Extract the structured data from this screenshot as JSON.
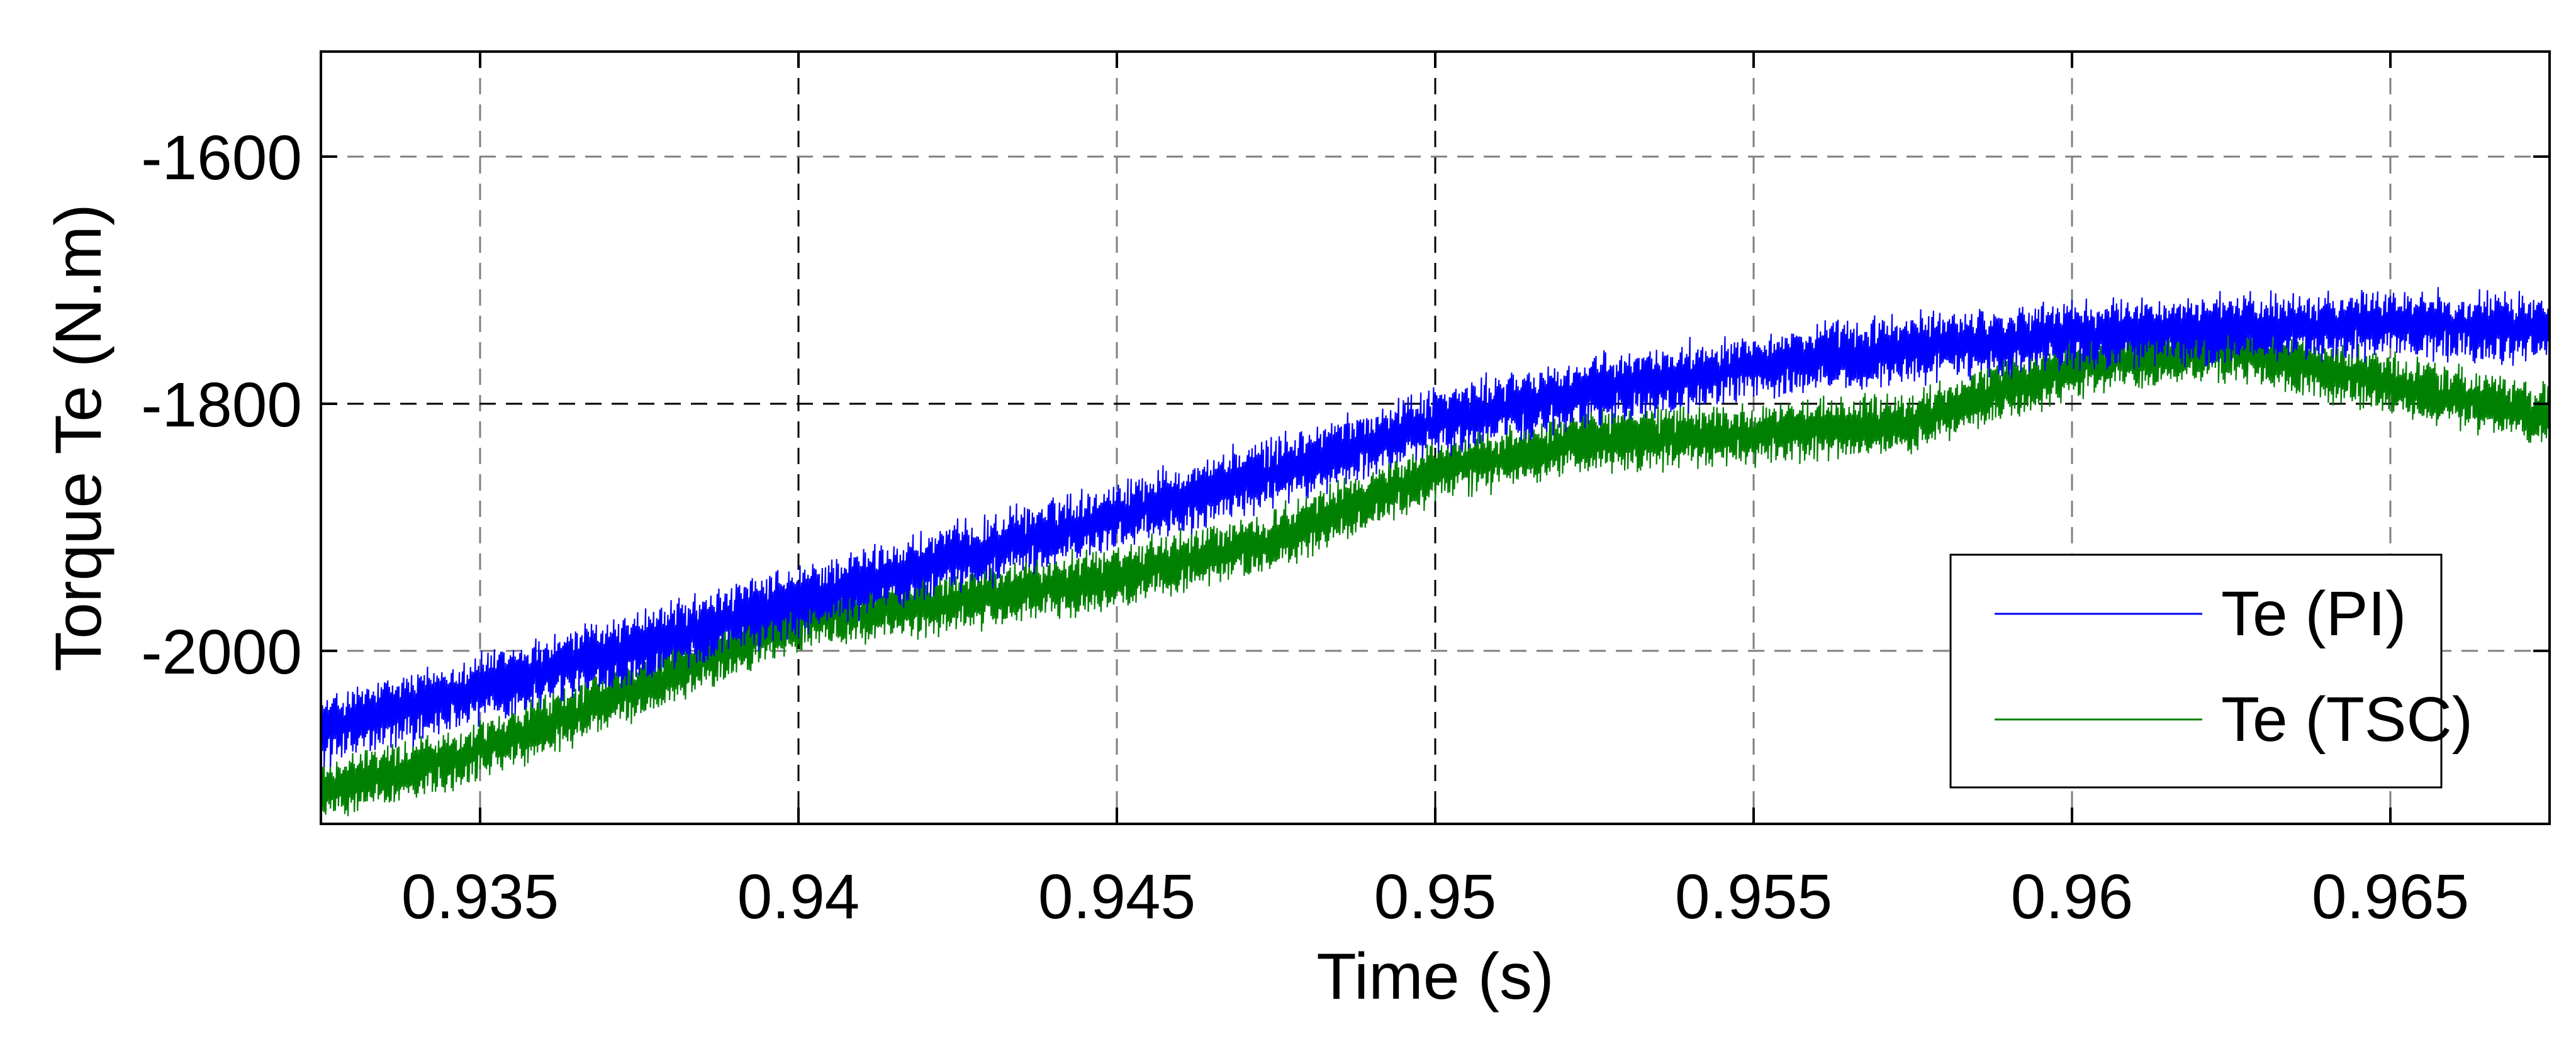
{
  "chart_data": {
    "type": "line",
    "xlabel": "Time (s)",
    "ylabel": "Torque Te (N.m)",
    "xlim": [
      0.9325,
      0.9675
    ],
    "ylim": [
      -2140,
      -1515
    ],
    "x_ticks": [
      0.935,
      0.94,
      0.945,
      0.95,
      0.955,
      0.96,
      0.965
    ],
    "x_tick_labels": [
      "0.935",
      "0.94",
      "0.945",
      "0.95",
      "0.955",
      "0.96",
      "0.965"
    ],
    "y_ticks": [
      -1600,
      -1800,
      -2000
    ],
    "y_tick_labels": [
      "-1600",
      "-1800",
      "-2000"
    ],
    "grid": true,
    "legend_position": "bottom-right",
    "ripple_note_free": true,
    "series": [
      {
        "name": "Te (PI)",
        "color": "#0000ff",
        "ripple": 45,
        "x": [
          0.9325,
          0.935,
          0.9375,
          0.94,
          0.9425,
          0.945,
          0.9475,
          0.95,
          0.9525,
          0.955,
          0.9575,
          0.96,
          0.9625,
          0.965,
          0.9675
        ],
        "y": [
          -2065,
          -2030,
          -1995,
          -1960,
          -1925,
          -1890,
          -1855,
          -1815,
          -1790,
          -1770,
          -1755,
          -1745,
          -1740,
          -1735,
          -1740
        ]
      },
      {
        "name": "Te (TSC)",
        "color": "#008000",
        "ripple": 40,
        "x": [
          0.9325,
          0.935,
          0.9375,
          0.94,
          0.9425,
          0.945,
          0.9475,
          0.95,
          0.9525,
          0.955,
          0.9575,
          0.96,
          0.9625,
          0.965,
          0.9675
        ],
        "y": [
          -2115,
          -2080,
          -2030,
          -1975,
          -1960,
          -1940,
          -1910,
          -1855,
          -1830,
          -1825,
          -1815,
          -1770,
          -1755,
          -1785,
          -1810
        ]
      }
    ]
  }
}
